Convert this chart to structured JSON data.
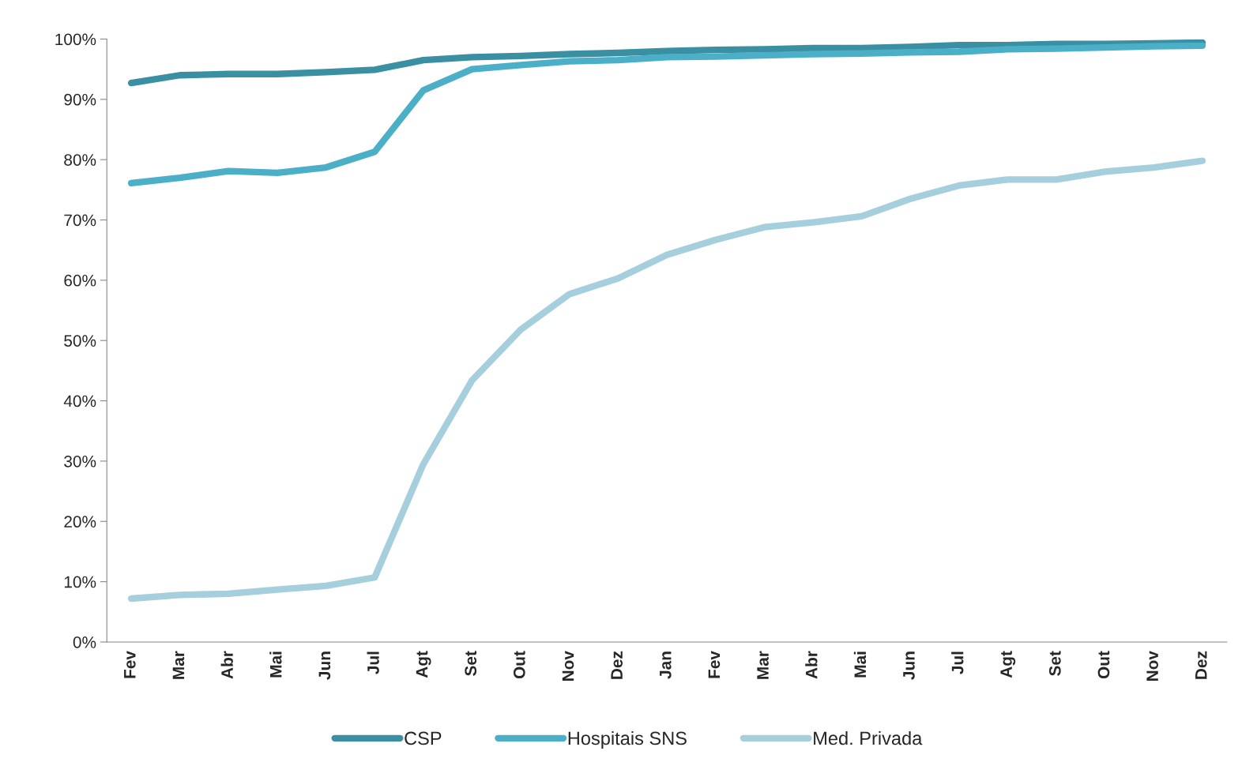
{
  "chart_data": {
    "type": "line",
    "categories": [
      "Fev",
      "Mar",
      "Abr",
      "Mai",
      "Jun",
      "Jul",
      "Agt",
      "Set",
      "Out",
      "Nov",
      "Dez",
      "Jan",
      "Fev",
      "Mar",
      "Abr",
      "Mai",
      "Jun",
      "Jul",
      "Agt",
      "Set",
      "Out",
      "Nov",
      "Dez"
    ],
    "series": [
      {
        "name": "CSP",
        "color": "#3a8fa3",
        "values": [
          92.7,
          94.0,
          94.2,
          94.2,
          94.5,
          94.9,
          96.5,
          97.0,
          97.2,
          97.5,
          97.7,
          98.0,
          98.2,
          98.3,
          98.5,
          98.5,
          98.7,
          99.0,
          99.0,
          99.2,
          99.2,
          99.3,
          99.4
        ]
      },
      {
        "name": "Hospitais SNS",
        "color": "#4bafc8",
        "values": [
          76.1,
          77.0,
          78.1,
          77.8,
          78.7,
          81.3,
          91.5,
          95.0,
          95.7,
          96.3,
          96.5,
          97.0,
          97.1,
          97.3,
          97.5,
          97.6,
          97.8,
          97.9,
          98.3,
          98.4,
          98.6,
          98.8,
          98.9
        ]
      },
      {
        "name": "Med. Privada",
        "color": "#a5cfdc",
        "values": [
          7.2,
          7.8,
          8.0,
          8.7,
          9.3,
          10.7,
          29.5,
          43.4,
          51.8,
          57.7,
          60.3,
          64.2,
          66.7,
          68.8,
          69.6,
          70.6,
          73.5,
          75.7,
          76.7,
          76.7,
          78.0,
          78.7,
          79.8
        ]
      }
    ],
    "ylim": [
      0,
      100
    ],
    "yticks": [
      {
        "value": 0,
        "label": "0%"
      },
      {
        "value": 10,
        "label": "10%"
      },
      {
        "value": 20,
        "label": "20%"
      },
      {
        "value": 30,
        "label": "30%"
      },
      {
        "value": 40,
        "label": "40%"
      },
      {
        "value": 50,
        "label": "50%"
      },
      {
        "value": 60,
        "label": "60%"
      },
      {
        "value": 70,
        "label": "70%"
      },
      {
        "value": 80,
        "label": "80%"
      },
      {
        "value": 90,
        "label": "90%"
      },
      {
        "value": 100,
        "label": "100%"
      }
    ],
    "grid": false,
    "legend": "bottom",
    "marker": "none",
    "line_style": "solid"
  }
}
